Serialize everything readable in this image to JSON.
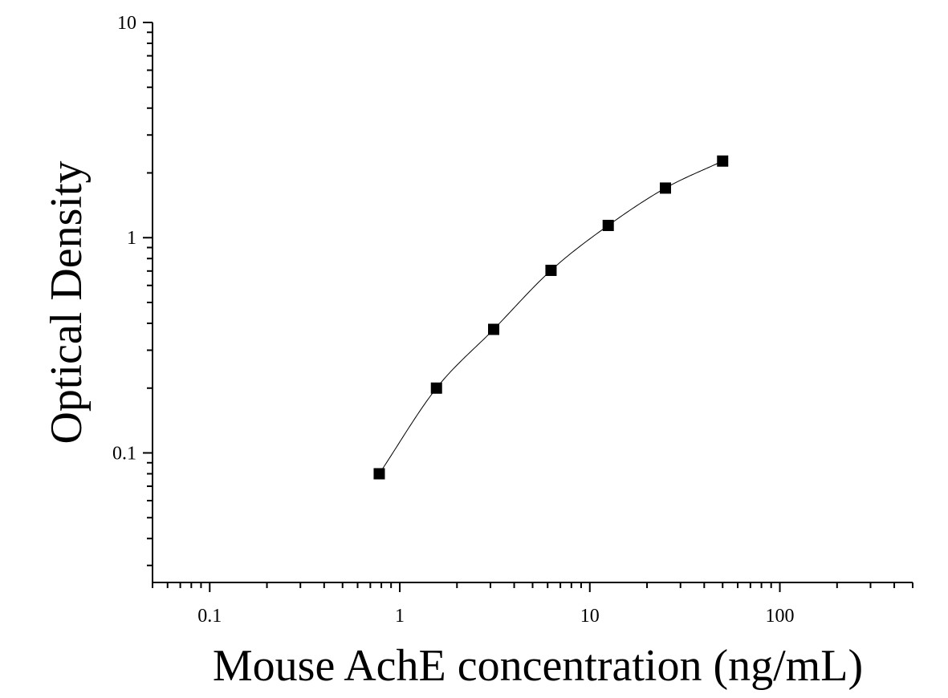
{
  "chart_data": {
    "type": "scatter",
    "title": "",
    "xlabel": "Mouse AchE concentration (ng/mL)",
    "ylabel": "Optical Density",
    "x_scale": "log",
    "y_scale": "log",
    "xlim": [
      0.05,
      500
    ],
    "ylim": [
      0.025,
      10
    ],
    "x_ticks": [
      {
        "value": 0.1,
        "label": "0.1"
      },
      {
        "value": 1,
        "label": "1"
      },
      {
        "value": 10,
        "label": "10"
      },
      {
        "value": 100,
        "label": "100"
      }
    ],
    "y_ticks": [
      {
        "value": 0.1,
        "label": "0.1"
      },
      {
        "value": 1,
        "label": "1"
      },
      {
        "value": 10,
        "label": "10"
      }
    ],
    "grid": false,
    "legend": "none",
    "series": [
      {
        "x": [
          0.78,
          1.56,
          3.12,
          6.25,
          12.5,
          25,
          50
        ],
        "y": [
          0.08,
          0.2,
          0.375,
          0.705,
          1.14,
          1.7,
          2.27
        ],
        "marker": "square",
        "fit_curve": true,
        "color": "#000000"
      }
    ]
  }
}
